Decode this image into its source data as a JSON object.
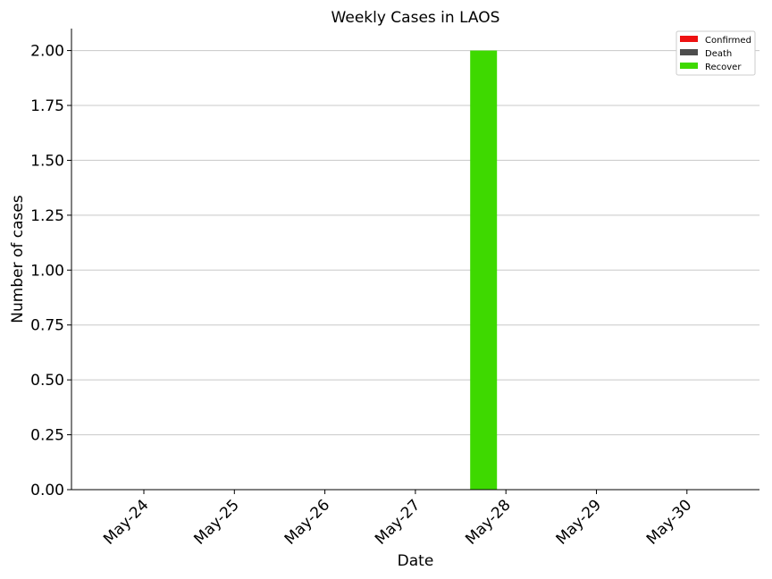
{
  "chart_data": {
    "type": "bar",
    "title": "Weekly Cases in LAOS",
    "xlabel": "Date",
    "ylabel": "Number of cases",
    "categories": [
      "May-24",
      "May-25",
      "May-26",
      "May-27",
      "May-28",
      "May-29",
      "May-30"
    ],
    "series": [
      {
        "name": "Confirmed",
        "color": "#ee1111",
        "values": [
          0,
          0,
          0,
          0,
          0,
          0,
          0
        ]
      },
      {
        "name": "Death",
        "color": "#4d4d4d",
        "values": [
          0,
          0,
          0,
          0,
          0,
          0,
          0
        ]
      },
      {
        "name": "Recover",
        "color": "#3ed900",
        "values": [
          0,
          0,
          0,
          0,
          2,
          0,
          0
        ]
      }
    ],
    "ylim": [
      0,
      2.1
    ],
    "yticks": [
      "0.00",
      "0.25",
      "0.50",
      "0.75",
      "1.00",
      "1.25",
      "1.50",
      "1.75",
      "2.00"
    ],
    "grid": "horizontal",
    "legend_position": "top-right"
  }
}
